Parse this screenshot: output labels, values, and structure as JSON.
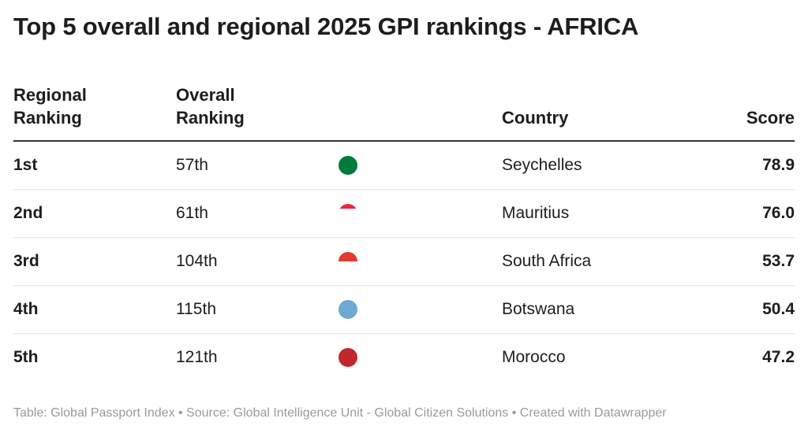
{
  "header": {
    "title": "Top 5 overall and regional 2025 GPI rankings - AFRICA"
  },
  "table": {
    "columns": [
      "Regional Ranking",
      "Overall Ranking",
      "Country",
      "Score"
    ],
    "rows": [
      [
        "1st",
        "57th",
        "Seychelles",
        "78.9"
      ],
      [
        "2nd",
        "61th",
        "Mauritius",
        "76.0"
      ],
      [
        "3rd",
        "104th",
        "South Africa",
        "53.7"
      ],
      [
        "4th",
        "115th",
        "Botswana",
        "50.4"
      ],
      [
        "5th",
        "121th",
        "Morocco",
        "47.2"
      ]
    ]
  },
  "footer": {
    "text": "Table: Global Passport Index • Source: Global Intelligence Unit - Global Citizen Solutions • Created with Datawrapper"
  }
}
